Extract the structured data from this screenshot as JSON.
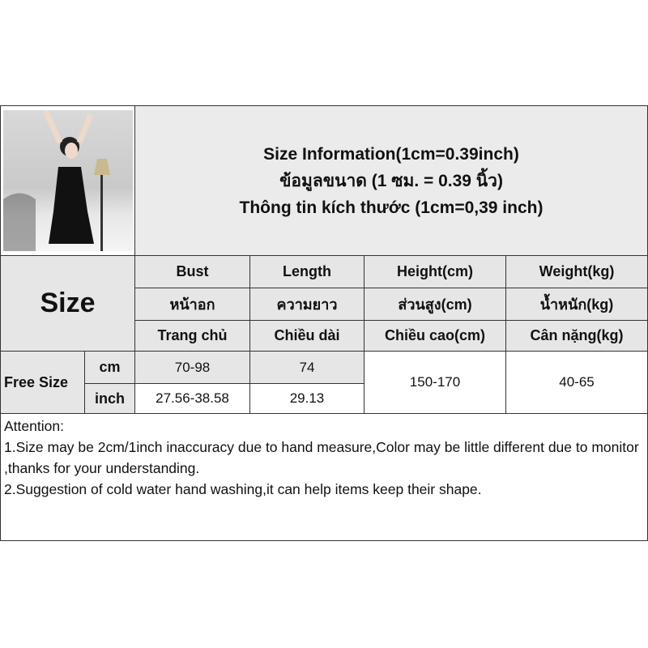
{
  "title_lines": [
    "Size Information(1cm=0.39inch)",
    "ข้อมูลขนาด (1 ซม. = 0.39 นิ้ว)",
    "Thông tin kích thước (1cm=0,39 inch)"
  ],
  "size_label": "Size",
  "columns": [
    {
      "en": "Bust",
      "th": "หน้าอก",
      "vi": "Trang chủ"
    },
    {
      "en": "Length",
      "th": "ความยาว",
      "vi": "Chiều dài"
    },
    {
      "en": "Height(cm)",
      "th": "ส่วนสูง(cm)",
      "vi": "Chiều cao(cm)"
    },
    {
      "en": "Weight(kg)",
      "th": "น้ำหนัก(kg)",
      "vi": "Cân nặng(kg)"
    }
  ],
  "row": {
    "name": "Free Size",
    "cm_label": "cm",
    "inch_label": "inch",
    "bust_cm": "70-98",
    "length_cm": "74",
    "bust_inch": "27.56-38.58",
    "length_inch": "29.13",
    "height": "150-170",
    "weight": "40-65"
  },
  "attention": {
    "heading": "Attention:",
    "line1": "1.Size may be 2cm/1inch inaccuracy due to hand measure,Color may be little different due to monitor ,thanks for your understanding.",
    "line2": "2.Suggestion of cold water hand washing,it can help items keep their shape."
  }
}
